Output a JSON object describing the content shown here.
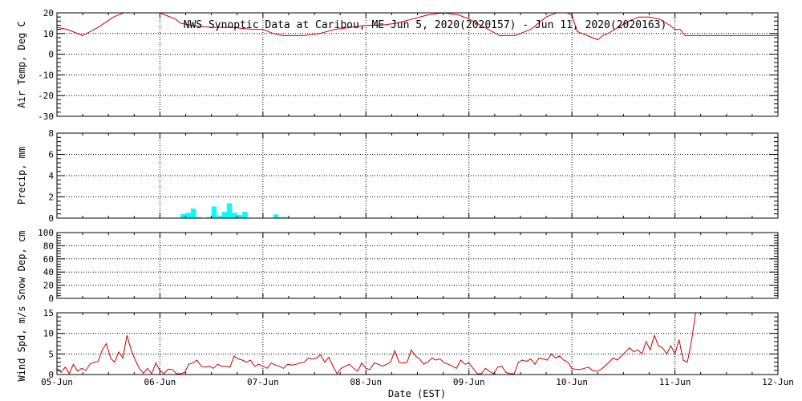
{
  "chart_data": {
    "type": "line",
    "title": "NWS Synoptic Data at Caribou, ME   Jun  5, 2020(2020157) - Jun 11, 2020(2020163)",
    "xlabel": "Date (EST)",
    "x_ticks": [
      "05-Jun",
      "06-Jun",
      "07-Jun",
      "08-Jun",
      "09-Jun",
      "10-Jun",
      "11-Jun",
      "12-Jun"
    ],
    "colors": {
      "line": "#cc0000",
      "bar": "#00ffff",
      "axis": "#000000"
    },
    "panels": [
      {
        "id": "air-temp",
        "type": "line",
        "ylabel": "Air Temp, Deg C",
        "ylim": [
          -30,
          20
        ],
        "yticks": [
          -30,
          -20,
          -10,
          0,
          10,
          20
        ],
        "x": [
          0,
          0.1,
          0.25,
          0.4,
          0.55,
          0.7,
          0.8,
          0.95,
          1.05,
          1.15,
          1.2,
          1.3,
          1.5,
          1.7,
          1.9,
          2.0,
          2.1,
          2.2,
          2.3,
          2.4,
          2.55,
          2.7,
          2.85,
          3.0,
          3.15,
          3.3,
          3.45,
          3.6,
          3.75,
          3.9,
          4.0,
          4.15,
          4.3,
          4.45,
          4.6,
          4.75,
          4.9,
          5.0,
          5.05,
          5.1,
          5.15,
          5.2,
          5.25,
          5.3,
          5.35,
          5.45,
          5.55,
          5.65,
          5.75,
          5.85,
          5.95,
          6.0,
          6.05,
          6.1,
          7.0
        ],
        "values": [
          13,
          12,
          9,
          13,
          18,
          21,
          21,
          21,
          19,
          17,
          15,
          14,
          13,
          13,
          12,
          12,
          10,
          9,
          9,
          9,
          10,
          12,
          13,
          14,
          14,
          15,
          17,
          19,
          20,
          19,
          17,
          13,
          9,
          9,
          12,
          18,
          21,
          19,
          11,
          10,
          9,
          8,
          7,
          9,
          10,
          13,
          16,
          18,
          18,
          17,
          14,
          12,
          12,
          9,
          9
        ]
      },
      {
        "id": "precip",
        "type": "bar",
        "ylabel": "Precip, mm",
        "ylim": [
          0,
          8
        ],
        "yticks": [
          0,
          2,
          4,
          6,
          8
        ],
        "bars": [
          {
            "x": 1.2,
            "value": 0.4
          },
          {
            "x": 1.25,
            "value": 0.5
          },
          {
            "x": 1.3,
            "value": 0.9
          },
          {
            "x": 1.35,
            "value": 0.1
          },
          {
            "x": 1.45,
            "value": 0.1
          },
          {
            "x": 1.5,
            "value": 1.1
          },
          {
            "x": 1.55,
            "value": 0.2
          },
          {
            "x": 1.6,
            "value": 0.6
          },
          {
            "x": 1.65,
            "value": 1.4
          },
          {
            "x": 1.7,
            "value": 0.5
          },
          {
            "x": 1.75,
            "value": 0.3
          },
          {
            "x": 1.8,
            "value": 0.6
          },
          {
            "x": 2.1,
            "value": 0.35
          },
          {
            "x": 2.15,
            "value": 0.1
          },
          {
            "x": 2.2,
            "value": 0.1
          }
        ]
      },
      {
        "id": "snow",
        "type": "line",
        "ylabel": "Snow Dep, cm",
        "ylim": [
          0,
          100
        ],
        "yticks": [
          0,
          20,
          40,
          60,
          80,
          100
        ],
        "x": [],
        "values": []
      },
      {
        "id": "wind",
        "type": "line",
        "ylabel": "Wind Spd, m/s",
        "ylim": [
          0,
          15
        ],
        "yticks": [
          0,
          5,
          10,
          15
        ],
        "x": [
          0,
          0.04,
          0.08,
          0.12,
          0.16,
          0.2,
          0.24,
          0.28,
          0.32,
          0.36,
          0.4,
          0.44,
          0.48,
          0.52,
          0.56,
          0.6,
          0.64,
          0.68,
          0.72,
          0.76,
          0.8,
          0.84,
          0.88,
          0.92,
          0.96,
          1.0,
          1.04,
          1.08,
          1.12,
          1.16,
          1.2,
          1.24,
          1.28,
          1.32,
          1.36,
          1.4,
          1.44,
          1.48,
          1.52,
          1.56,
          1.6,
          1.64,
          1.68,
          1.72,
          1.76,
          1.8,
          1.84,
          1.88,
          1.92,
          1.96,
          2.0,
          2.04,
          2.08,
          2.12,
          2.16,
          2.2,
          2.24,
          2.28,
          2.32,
          2.36,
          2.4,
          2.44,
          2.48,
          2.52,
          2.56,
          2.6,
          2.64,
          2.68,
          2.72,
          2.76,
          2.8,
          2.84,
          2.88,
          2.92,
          2.96,
          3.0,
          3.04,
          3.08,
          3.12,
          3.16,
          3.2,
          3.24,
          3.28,
          3.32,
          3.36,
          3.4,
          3.44,
          3.48,
          3.52,
          3.56,
          3.6,
          3.64,
          3.68,
          3.72,
          3.76,
          3.8,
          3.84,
          3.88,
          3.92,
          3.96,
          4.0,
          4.04,
          4.08,
          4.12,
          4.16,
          4.2,
          4.24,
          4.28,
          4.32,
          4.36,
          4.4,
          4.44,
          4.48,
          4.52,
          4.56,
          4.6,
          4.64,
          4.68,
          4.72,
          4.76,
          4.8,
          4.84,
          4.88,
          4.92,
          4.96,
          5.0,
          5.04,
          5.08,
          5.12,
          5.16,
          5.2,
          5.24,
          5.28,
          5.32,
          5.36,
          5.4,
          5.44,
          5.48,
          5.52,
          5.56,
          5.6,
          5.64,
          5.68,
          5.72,
          5.76,
          5.8,
          5.84,
          5.88,
          5.92,
          5.96,
          6.0,
          6.04,
          6.08,
          6.12,
          6.16,
          6.2
        ],
        "values": [
          1.5,
          0.5,
          1.8,
          0.2,
          2.5,
          0.8,
          1.5,
          1.0,
          2.5,
          3.0,
          3.2,
          6.0,
          7.5,
          4.0,
          3.0,
          5.5,
          4.0,
          9.5,
          6.0,
          3.5,
          1.5,
          0.3,
          1.5,
          0.2,
          2.8,
          1.0,
          0.2,
          1.3,
          1.2,
          0.2,
          0.2,
          0.5,
          2.5,
          2.8,
          3.5,
          2.0,
          1.8,
          2.0,
          1.5,
          2.5,
          2.0,
          2.0,
          1.8,
          4.5,
          3.8,
          3.5,
          3.0,
          3.5,
          2.0,
          2.5,
          2.0,
          1.5,
          2.8,
          2.3,
          2.0,
          1.5,
          2.5,
          2.3,
          2.5,
          2.8,
          3.0,
          4.0,
          3.8,
          4.0,
          4.8,
          3.0,
          4.2,
          2.0,
          0.2,
          1.5,
          2.0,
          2.5,
          1.5,
          0.8,
          2.8,
          1.5,
          1.2,
          2.8,
          2.5,
          2.0,
          2.5,
          3.0,
          5.8,
          3.0,
          2.8,
          3.0,
          6.0,
          4.5,
          3.8,
          2.5,
          3.0,
          4.0,
          3.5,
          3.8,
          2.8,
          2.5,
          2.0,
          1.5,
          3.5,
          2.5,
          2.8,
          1.5,
          0.2,
          0.2,
          1.5,
          0.8,
          0.2,
          1.8,
          2.0,
          0.5,
          0.2,
          0.2,
          3.0,
          3.5,
          3.2,
          3.8,
          2.5,
          4.0,
          3.8,
          3.5,
          5.0,
          4.0,
          4.5,
          3.5,
          3.0,
          1.5,
          1.2,
          1.2,
          1.5,
          1.8,
          1.0,
          0.8,
          1.2,
          2.0,
          3.0,
          4.0,
          3.5,
          4.5,
          5.5,
          6.5,
          5.5,
          6.0,
          5.0,
          8.0,
          6.0,
          9.5,
          7.0,
          6.5,
          5.0,
          7.0,
          5.0,
          8.5,
          3.5,
          3.0,
          8.0,
          15.0
        ]
      }
    ]
  }
}
